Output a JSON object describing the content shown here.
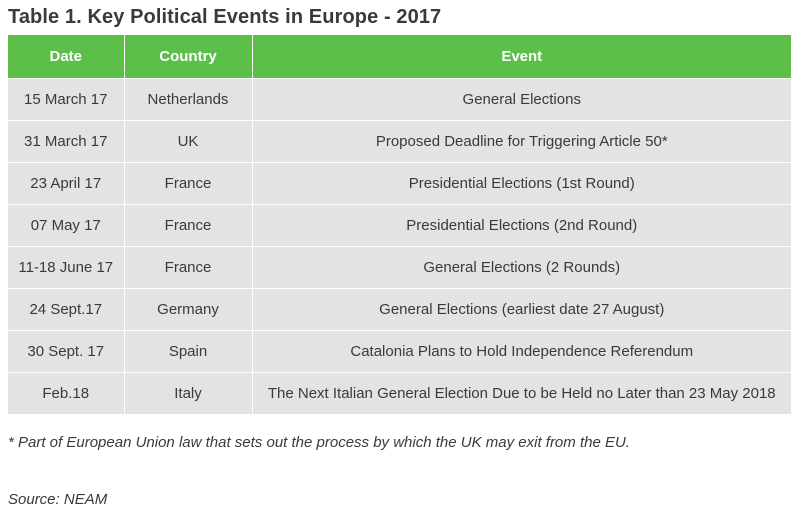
{
  "title": "Table 1. Key Political Events in Europe - 2017",
  "table": {
    "headers": {
      "date": "Date",
      "country": "Country",
      "event": "Event"
    },
    "rows": [
      {
        "date": "15 March 17",
        "country": "Netherlands",
        "event": "General Elections"
      },
      {
        "date": "31 March 17",
        "country": "UK",
        "event": "Proposed Deadline for Triggering Article 50*"
      },
      {
        "date": "23 April 17",
        "country": "France",
        "event": "Presidential Elections (1st Round)"
      },
      {
        "date": "07 May 17",
        "country": "France",
        "event": "Presidential Elections (2nd Round)"
      },
      {
        "date": "11-18 June 17",
        "country": "France",
        "event": "General Elections (2 Rounds)"
      },
      {
        "date": "24 Sept.17",
        "country": "Germany",
        "event": "General Elections (earliest date 27 August)"
      },
      {
        "date": "30 Sept. 17",
        "country": "Spain",
        "event": "Catalonia Plans to Hold Independence Referendum"
      },
      {
        "date": "Feb.18",
        "country": "Italy",
        "event": "The Next Italian General Election Due to be Held no Later than 23 May 2018"
      }
    ]
  },
  "footnote": "* Part of European Union law that sets out the process by which the UK may exit from the EU.",
  "source": "Source: NEAM",
  "colors": {
    "header_bg": "#5bbf4a",
    "header_text": "#ffffff",
    "row_bg": "#e3e3e3",
    "text": "#3a3a3a"
  }
}
